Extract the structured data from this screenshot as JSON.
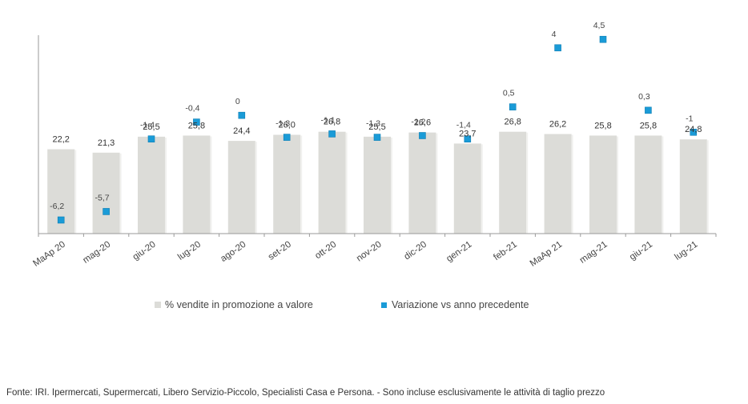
{
  "chart_data": {
    "type": "bar",
    "categories": [
      "MaAp 20",
      "mag-20",
      "giu-20",
      "lug-20",
      "ago-20",
      "set-20",
      "ott-20",
      "nov-20",
      "dic-20",
      "gen-21",
      "feb-21",
      "MaAp 21",
      "mag-21",
      "giu-21",
      "lug-21"
    ],
    "series": [
      {
        "name": "% vendite in promozione a valore",
        "type": "bar",
        "values": [
          22.2,
          21.3,
          25.5,
          25.8,
          24.4,
          26.0,
          26.8,
          25.5,
          26.6,
          23.7,
          26.8,
          26.2,
          25.8,
          25.8,
          24.8
        ],
        "labels": [
          "22,2",
          "21,3",
          "25,5",
          "25,8",
          "24,4",
          "26,0",
          "26,8",
          "25,5",
          "26,6",
          "23,7",
          "26,8",
          "26,2",
          "25,8",
          "25,8",
          "24,8"
        ],
        "color": "#dcdcd8"
      },
      {
        "name": "Variazione vs anno precedente",
        "type": "scatter",
        "values": [
          -6.2,
          -5.7,
          -1.4,
          -0.4,
          0,
          -1.3,
          -1.1,
          -1.3,
          -1.2,
          -1.4,
          0.5,
          4,
          4.5,
          0.3,
          -1
        ],
        "labels": [
          "-6,2",
          "-5,7",
          "-1,4",
          "-0,4",
          "0",
          "-1,3",
          "-1,1",
          "-1,3",
          "-1,2",
          "-1,4",
          "0,5",
          "4",
          "4,5",
          "0,3",
          "-1"
        ],
        "color": "#1a9bd7"
      }
    ],
    "legend_position": "bottom"
  },
  "legend": {
    "bar_label": "% vendite in promozione a valore",
    "marker_label": "Variazione vs anno precedente"
  },
  "footnote": "Fonte: IRI. Ipermercati, Supermercati, Libero Servizio-Piccolo, Specialisti Casa e Persona. - Sono incluse esclusivamente le attività di taglio prezzo"
}
